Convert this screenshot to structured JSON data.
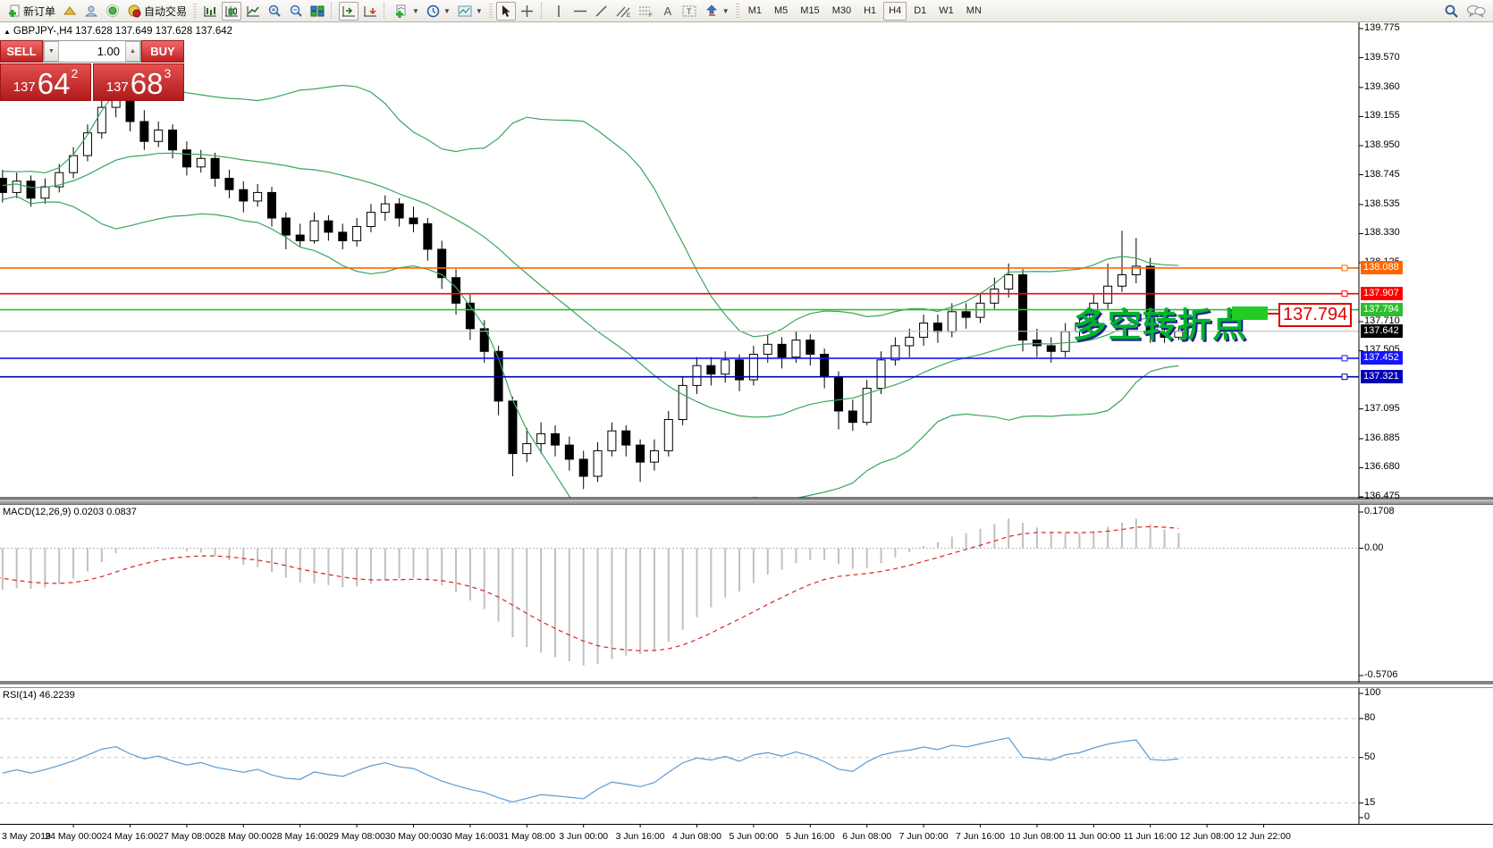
{
  "toolbar": {
    "new_order_label": "新订单",
    "auto_trading_label": "自动交易",
    "timeframes": [
      "M1",
      "M5",
      "M15",
      "M30",
      "H1",
      "H4",
      "D1",
      "W1",
      "MN"
    ],
    "active_timeframe": "H4"
  },
  "symbol_bar": {
    "text": "GBPJPY-,H4  137.628 137.649 137.628 137.642"
  },
  "trade_panel": {
    "sell_label": "SELL",
    "buy_label": "BUY",
    "volume": "1.00",
    "sell_small": "137",
    "sell_big": "64",
    "sell_sup": "2",
    "buy_small": "137",
    "buy_big": "68",
    "buy_sup": "3"
  },
  "annotation": {
    "text": "多空转折点",
    "price_tag": "137.794"
  },
  "macd_panel": {
    "label": "MACD(12,26,9) 0.0203 0.0837"
  },
  "rsi_panel": {
    "label": "RSI(14) 46.2239"
  },
  "chart_data": {
    "type": "candlestick",
    "symbol": "GBPJPY-",
    "timeframe": "H4",
    "price_axis_ticks": [
      "139.775",
      "139.570",
      "139.360",
      "139.155",
      "138.950",
      "138.745",
      "138.535",
      "138.330",
      "138.125",
      "137.710",
      "137.505",
      "137.095",
      "136.885",
      "136.680",
      "136.475"
    ],
    "levels": [
      {
        "value": 138.088,
        "text": "138.088",
        "color": "#ff6600"
      },
      {
        "value": 137.907,
        "text": "137.907",
        "color": "#ff0000"
      },
      {
        "value": 137.794,
        "text": "137.794",
        "color": "#2dbe2d"
      },
      {
        "value": 137.642,
        "text": "137.642",
        "color": "#bbbbbb",
        "label_bg": "#000000",
        "is_price": true
      },
      {
        "value": 137.452,
        "text": "137.452",
        "color": "#1414ff"
      },
      {
        "value": 137.321,
        "text": "137.321",
        "color": "#0000b4"
      }
    ],
    "bollinger": {
      "period": 20,
      "deviations": 2,
      "color": "#3ba55d"
    },
    "candles": [
      [
        138.84,
        138.88,
        138.66,
        138.72
      ],
      [
        138.72,
        138.78,
        138.55,
        138.62
      ],
      [
        138.62,
        138.76,
        138.58,
        138.7
      ],
      [
        138.7,
        138.74,
        138.52,
        138.58
      ],
      [
        138.58,
        138.72,
        138.54,
        138.66
      ],
      [
        138.66,
        138.82,
        138.62,
        138.76
      ],
      [
        138.76,
        138.94,
        138.72,
        138.88
      ],
      [
        138.88,
        139.1,
        138.84,
        139.04
      ],
      [
        139.04,
        139.28,
        139.0,
        139.22
      ],
      [
        139.22,
        139.42,
        139.15,
        139.3
      ],
      [
        139.3,
        139.34,
        139.05,
        139.12
      ],
      [
        139.12,
        139.2,
        138.92,
        138.98
      ],
      [
        138.98,
        139.12,
        138.94,
        139.06
      ],
      [
        139.06,
        139.1,
        138.86,
        138.92
      ],
      [
        138.92,
        138.98,
        138.74,
        138.8
      ],
      [
        138.8,
        138.92,
        138.76,
        138.86
      ],
      [
        138.86,
        138.9,
        138.66,
        138.72
      ],
      [
        138.72,
        138.78,
        138.58,
        138.64
      ],
      [
        138.64,
        138.7,
        138.48,
        138.56
      ],
      [
        138.56,
        138.68,
        138.52,
        138.62
      ],
      [
        138.62,
        138.66,
        138.38,
        138.44
      ],
      [
        138.44,
        138.48,
        138.22,
        138.32
      ],
      [
        138.32,
        138.4,
        138.24,
        138.28
      ],
      [
        138.28,
        138.48,
        138.26,
        138.42
      ],
      [
        138.42,
        138.46,
        138.28,
        138.34
      ],
      [
        138.34,
        138.4,
        138.22,
        138.28
      ],
      [
        138.28,
        138.44,
        138.24,
        138.38
      ],
      [
        138.38,
        138.54,
        138.34,
        138.48
      ],
      [
        138.48,
        138.6,
        138.42,
        138.54
      ],
      [
        138.54,
        138.58,
        138.38,
        138.44
      ],
      [
        138.44,
        138.52,
        138.34,
        138.4
      ],
      [
        138.4,
        138.44,
        138.14,
        138.22
      ],
      [
        138.22,
        138.28,
        137.94,
        138.02
      ],
      [
        138.02,
        138.08,
        137.76,
        137.84
      ],
      [
        137.84,
        137.9,
        137.58,
        137.66
      ],
      [
        137.66,
        137.72,
        137.42,
        137.5
      ],
      [
        137.5,
        137.54,
        137.05,
        137.15
      ],
      [
        137.15,
        137.18,
        136.62,
        136.78
      ],
      [
        136.78,
        136.96,
        136.72,
        136.85
      ],
      [
        136.85,
        137.0,
        136.78,
        136.92
      ],
      [
        136.92,
        136.98,
        136.76,
        136.84
      ],
      [
        136.84,
        136.9,
        136.66,
        136.74
      ],
      [
        136.74,
        136.8,
        136.53,
        136.62
      ],
      [
        136.62,
        136.86,
        136.58,
        136.8
      ],
      [
        136.8,
        137.0,
        136.76,
        136.94
      ],
      [
        136.94,
        136.98,
        136.76,
        136.84
      ],
      [
        136.84,
        136.88,
        136.58,
        136.72
      ],
      [
        136.72,
        136.88,
        136.66,
        136.8
      ],
      [
        136.8,
        137.08,
        136.76,
        137.02
      ],
      [
        137.02,
        137.32,
        136.98,
        137.26
      ],
      [
        137.26,
        137.46,
        137.2,
        137.4
      ],
      [
        137.4,
        137.46,
        137.26,
        137.34
      ],
      [
        137.34,
        137.5,
        137.28,
        137.44
      ],
      [
        137.44,
        137.48,
        137.22,
        137.3
      ],
      [
        137.3,
        137.54,
        137.26,
        137.48
      ],
      [
        137.48,
        137.62,
        137.42,
        137.55
      ],
      [
        137.55,
        137.6,
        137.38,
        137.46
      ],
      [
        137.46,
        137.64,
        137.42,
        137.58
      ],
      [
        137.58,
        137.62,
        137.4,
        137.48
      ],
      [
        137.48,
        137.52,
        137.24,
        137.32
      ],
      [
        137.32,
        137.36,
        136.95,
        137.08
      ],
      [
        137.08,
        137.16,
        136.94,
        137.0
      ],
      [
        137.0,
        137.3,
        136.98,
        137.24
      ],
      [
        137.24,
        137.5,
        137.2,
        137.44
      ],
      [
        137.44,
        137.6,
        137.4,
        137.54
      ],
      [
        137.54,
        137.66,
        137.46,
        137.6
      ],
      [
        137.6,
        137.76,
        137.54,
        137.7
      ],
      [
        137.7,
        137.76,
        137.56,
        137.64
      ],
      [
        137.64,
        137.84,
        137.6,
        137.78
      ],
      [
        137.78,
        137.84,
        137.66,
        137.74
      ],
      [
        137.74,
        137.9,
        137.7,
        137.84
      ],
      [
        137.84,
        138.02,
        137.8,
        137.94
      ],
      [
        137.94,
        138.12,
        137.88,
        138.04
      ],
      [
        138.04,
        138.08,
        137.5,
        137.58
      ],
      [
        137.58,
        137.66,
        137.46,
        137.54
      ],
      [
        137.54,
        137.6,
        137.42,
        137.5
      ],
      [
        137.5,
        137.7,
        137.46,
        137.64
      ],
      [
        137.64,
        137.76,
        137.58,
        137.7
      ],
      [
        137.7,
        137.9,
        137.66,
        137.84
      ],
      [
        137.84,
        138.12,
        137.8,
        137.96
      ],
      [
        137.96,
        138.35,
        137.92,
        138.04
      ],
      [
        138.04,
        138.3,
        137.98,
        138.1
      ],
      [
        138.1,
        138.16,
        137.56,
        137.63
      ],
      [
        137.63,
        137.7,
        137.56,
        137.6
      ],
      [
        137.6,
        137.68,
        137.58,
        137.642
      ]
    ],
    "time_labels": [
      {
        "bar": 0,
        "text": "3 May 2019"
      },
      {
        "bar": 6,
        "text": "24 May 00:00"
      },
      {
        "bar": 10,
        "text": "24 May 16:00"
      },
      {
        "bar": 14,
        "text": "27 May 08:00"
      },
      {
        "bar": 18,
        "text": "28 May 00:00"
      },
      {
        "bar": 22,
        "text": "28 May 16:00"
      },
      {
        "bar": 26,
        "text": "29 May 08:00"
      },
      {
        "bar": 30,
        "text": "30 May 00:00"
      },
      {
        "bar": 34,
        "text": "30 May 16:00"
      },
      {
        "bar": 38,
        "text": "31 May 08:00"
      },
      {
        "bar": 42,
        "text": "3 Jun 00:00"
      },
      {
        "bar": 46,
        "text": "3 Jun 16:00"
      },
      {
        "bar": 50,
        "text": "4 Jun 08:00"
      },
      {
        "bar": 54,
        "text": "5 Jun 00:00"
      },
      {
        "bar": 58,
        "text": "5 Jun 16:00"
      },
      {
        "bar": 62,
        "text": "6 Jun 08:00"
      },
      {
        "bar": 66,
        "text": "7 Jun 00:00"
      },
      {
        "bar": 70,
        "text": "7 Jun 16:00"
      },
      {
        "bar": 74,
        "text": "10 Jun 08:00"
      },
      {
        "bar": 78,
        "text": "11 Jun 00:00"
      },
      {
        "bar": 82,
        "text": "11 Jun 16:00"
      },
      {
        "bar": 86,
        "text": "12 Jun 08:00"
      },
      {
        "bar": 90,
        "text": "12 Jun 22:00"
      }
    ],
    "indicators": [
      {
        "type": "macd",
        "params": [
          12,
          26,
          9
        ],
        "values_text": [
          "0.0203",
          "0.0837"
        ],
        "axis_ticks": [
          "0.1708",
          "0.00",
          "-0.5706"
        ],
        "max": 0.1708,
        "min": -0.5706,
        "histogram_color": "#c0c0c0",
        "signal_color": "#dd2222"
      },
      {
        "type": "rsi",
        "params": [
          14
        ],
        "value_text": "46.2239",
        "range": [
          0,
          100
        ],
        "levels": [
          80,
          50,
          15
        ],
        "axis_ticks": [
          "100",
          "80",
          "50",
          "15",
          "0"
        ],
        "color": "#5b9bd5"
      }
    ]
  }
}
